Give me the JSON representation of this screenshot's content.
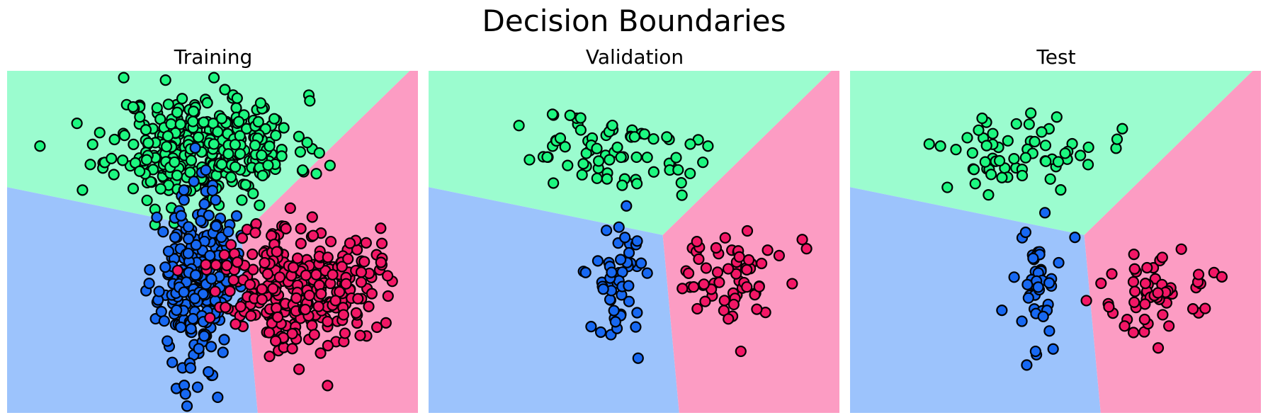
{
  "title": "Decision Boundaries",
  "colors": {
    "region_green": "#9bfccf",
    "region_blue": "#9cc3fc",
    "region_pink": "#fc9cc3",
    "point_green": "#1df780",
    "point_blue": "#1768f2",
    "point_pink": "#f21766"
  },
  "chart_data": [
    {
      "type": "scatter",
      "title": "Training",
      "xlim": [
        0,
        10
      ],
      "ylim": [
        0,
        10
      ],
      "axes_visible": false,
      "regions": [
        {
          "class": "green",
          "polygon": [
            [
              0,
              10
            ],
            [
              9.8,
              10
            ],
            [
              5.7,
              5.2
            ],
            [
              0,
              6.6
            ]
          ]
        },
        {
          "class": "blue",
          "polygon": [
            [
              0,
              6.6
            ],
            [
              5.7,
              5.2
            ],
            [
              6.1,
              0
            ],
            [
              0,
              0
            ]
          ]
        },
        {
          "class": "pink",
          "polygon": [
            [
              9.8,
              10
            ],
            [
              10,
              10
            ],
            [
              10,
              0
            ],
            [
              6.1,
              0
            ],
            [
              5.7,
              5.2
            ]
          ]
        }
      ],
      "series": [
        {
          "class": "green",
          "center": [
            4.8,
            7.8
          ],
          "spread": [
            1.1,
            0.75
          ],
          "count": 330,
          "seed": 11,
          "extra": [
            [
              0.8,
              7.8
            ],
            [
              7.6,
              7.6
            ],
            [
              3.6,
              5.5
            ],
            [
              5.6,
              9.2
            ]
          ]
        },
        {
          "class": "blue",
          "center": [
            4.6,
            3.9
          ],
          "spread": [
            0.45,
            1.25
          ],
          "count": 260,
          "seed": 23,
          "extra": [
            [
              4.9,
              1.2
            ],
            [
              3.9,
              2.1
            ]
          ]
        },
        {
          "class": "pink",
          "center": [
            7.1,
            3.8
          ],
          "spread": [
            0.95,
            0.9
          ],
          "count": 300,
          "seed": 37,
          "extra": [
            [
              7.8,
              0.8
            ],
            [
              9.1,
              4.4
            ]
          ]
        }
      ]
    },
    {
      "type": "scatter",
      "title": "Validation",
      "xlim": [
        0,
        10
      ],
      "ylim": [
        0,
        10
      ],
      "axes_visible": false,
      "regions": [
        {
          "class": "green",
          "polygon": [
            [
              0,
              10
            ],
            [
              9.8,
              10
            ],
            [
              5.7,
              5.2
            ],
            [
              0,
              6.6
            ]
          ]
        },
        {
          "class": "blue",
          "polygon": [
            [
              0,
              6.6
            ],
            [
              5.7,
              5.2
            ],
            [
              6.1,
              0
            ],
            [
              0,
              0
            ]
          ]
        },
        {
          "class": "pink",
          "polygon": [
            [
              9.8,
              10
            ],
            [
              10,
              10
            ],
            [
              10,
              0
            ],
            [
              6.1,
              0
            ],
            [
              5.7,
              5.2
            ]
          ]
        }
      ],
      "series": [
        {
          "class": "green",
          "center": [
            4.3,
            7.6
          ],
          "spread": [
            1.2,
            0.6
          ],
          "count": 70,
          "seed": 51,
          "extra": [
            [
              2.2,
              8.4
            ],
            [
              6.8,
              7.8
            ]
          ]
        },
        {
          "class": "blue",
          "center": [
            4.5,
            4.0
          ],
          "spread": [
            0.35,
            0.95
          ],
          "count": 50,
          "seed": 63,
          "extra": [
            [
              5.1,
              1.6
            ]
          ]
        },
        {
          "class": "pink",
          "center": [
            7.3,
            4.0
          ],
          "spread": [
            0.75,
            0.65
          ],
          "count": 60,
          "seed": 77,
          "extra": [
            [
              9.2,
              4.8
            ],
            [
              7.6,
              1.8
            ]
          ]
        }
      ]
    },
    {
      "type": "scatter",
      "title": "Test",
      "xlim": [
        0,
        10
      ],
      "ylim": [
        0,
        10
      ],
      "axes_visible": false,
      "regions": [
        {
          "class": "green",
          "polygon": [
            [
              0,
              10
            ],
            [
              9.8,
              10
            ],
            [
              5.7,
              5.2
            ],
            [
              0,
              6.6
            ]
          ]
        },
        {
          "class": "blue",
          "polygon": [
            [
              0,
              6.6
            ],
            [
              5.7,
              5.2
            ],
            [
              6.1,
              0
            ],
            [
              0,
              0
            ]
          ]
        },
        {
          "class": "pink",
          "polygon": [
            [
              9.8,
              10
            ],
            [
              10,
              10
            ],
            [
              10,
              0
            ],
            [
              6.1,
              0
            ],
            [
              5.7,
              5.2
            ]
          ]
        }
      ],
      "series": [
        {
          "class": "green",
          "center": [
            4.3,
            7.6
          ],
          "spread": [
            1.1,
            0.6
          ],
          "count": 60,
          "seed": 89,
          "extra": [
            [
              2.2,
              7.8
            ],
            [
              6.5,
              8.0
            ]
          ]
        },
        {
          "class": "blue",
          "center": [
            4.4,
            3.8
          ],
          "spread": [
            0.35,
            1.0
          ],
          "count": 45,
          "seed": 97,
          "extra": [
            [
              4.3,
              1.4
            ]
          ]
        },
        {
          "class": "pink",
          "center": [
            7.5,
            3.6
          ],
          "spread": [
            0.65,
            0.6
          ],
          "count": 55,
          "seed": 103,
          "extra": [
            [
              6.3,
              3.1
            ],
            [
              7.5,
              1.9
            ]
          ]
        }
      ]
    }
  ]
}
